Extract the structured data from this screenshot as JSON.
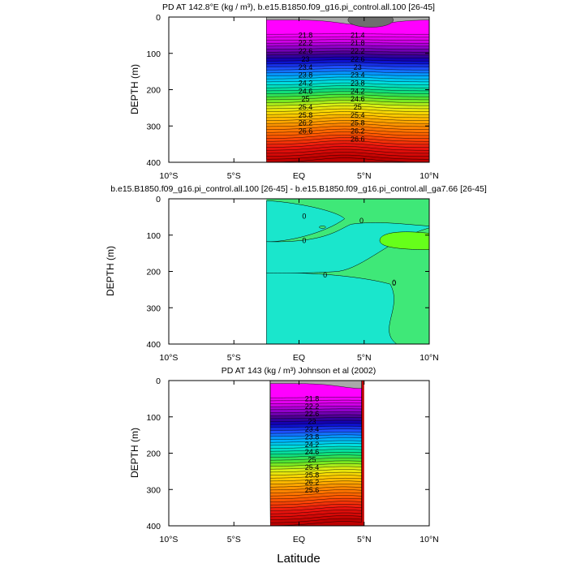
{
  "chart_data": [
    {
      "type": "contour",
      "title": "PD AT 142.8°E (kg / m³), b.e15.B1850.f09_g16.pi_control.all.100 [26-45]",
      "ylabel": "DEPTH (m)",
      "xlabel": "",
      "x_ticks": [
        "10°S",
        "5°S",
        "EQ",
        "5°N",
        "10°N"
      ],
      "y_ticks": [
        "0",
        "100",
        "200",
        "300",
        "400"
      ],
      "xlim": [
        -10,
        10
      ],
      "ylim": [
        400,
        0
      ],
      "data_lat_range": [
        -2.5,
        10
      ],
      "contour_labels": [
        "21.8",
        "22.2",
        "22.6",
        "23",
        "23.4",
        "23.8",
        "24.2",
        "24.6",
        "25",
        "25.4",
        "25.8",
        "26.2",
        "26.6",
        "21.4",
        "21.8",
        "22.2",
        "22.6",
        "23",
        "23.4",
        "23.8",
        "24.2",
        "24.6",
        "25",
        "25.4",
        "25.8",
        "26.2",
        "26.6"
      ]
    },
    {
      "type": "contour",
      "title": "b.e15.B1850.f09_g16.pi_control.all.100 [26-45] - b.e15.B1850.f09_g16.pi_control.all_ga7.66 [26-45]",
      "ylabel": "DEPTH (m)",
      "xlabel": "",
      "x_ticks": [
        "10°S",
        "5°S",
        "EQ",
        "5°N",
        "10°N"
      ],
      "y_ticks": [
        "0",
        "100",
        "200",
        "300",
        "400"
      ],
      "xlim": [
        -10,
        10
      ],
      "ylim": [
        400,
        0
      ],
      "data_lat_range": [
        -2.5,
        10
      ],
      "contour_labels": [
        "0",
        "0",
        "0",
        "0",
        "0"
      ]
    },
    {
      "type": "contour",
      "title": "PD AT 143 (kg / m³) Johnson et al (2002)",
      "ylabel": "DEPTH (m)",
      "xlabel": "Latitude",
      "x_ticks": [
        "10°S",
        "5°S",
        "EQ",
        "5°N",
        "10°N"
      ],
      "y_ticks": [
        "0",
        "100",
        "200",
        "300",
        "400"
      ],
      "xlim": [
        -10,
        10
      ],
      "ylim": [
        400,
        0
      ],
      "data_lat_range": [
        -2.2,
        5
      ],
      "contour_labels": [
        "21.8",
        "22.2",
        "22.6",
        "23",
        "23.4",
        "23.8",
        "24.2",
        "24.6",
        "25",
        "25.4",
        "25.8",
        "26.2",
        "25.6"
      ]
    }
  ],
  "colors": {
    "land_gray": "#a9a9a9",
    "dark_gray": "#6e6e6e",
    "diff_cyan": "#1ae6cc",
    "diff_green": "#3fe878",
    "diff_lime": "#66ff1a"
  }
}
